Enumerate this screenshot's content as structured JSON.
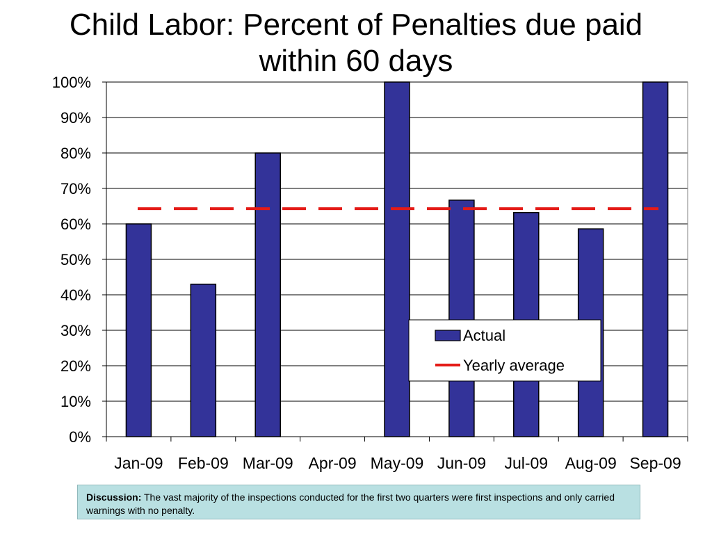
{
  "title_line1": "Child Labor: Percent of Penalties due paid",
  "title_line2": "within 60 days",
  "discussion": {
    "label": "Discussion:",
    "text": "The vast majority of the inspections conducted for the first two quarters were first inspections and only carried warnings with no penalty."
  },
  "colors": {
    "bar": "#333399",
    "bar_border": "#000000",
    "average_line": "#e41b17",
    "grid": "#000000",
    "discussion_bg": "#b9e0e2"
  },
  "chart_data": {
    "type": "bar",
    "title": "Child Labor: Percent of Penalties due paid within 60 days",
    "categories": [
      "Jan-09",
      "Feb-09",
      "Mar-09",
      "Apr-09",
      "May-09",
      "Jun-09",
      "Jul-09",
      "Aug-09",
      "Sep-09"
    ],
    "series": [
      {
        "name": "Actual",
        "values": [
          60,
          43,
          80,
          null,
          100,
          66.7,
          63.2,
          58.6,
          100
        ]
      }
    ],
    "yearly_average": {
      "name": "Yearly average",
      "value": 64.3,
      "style": "dashed"
    },
    "ylim": [
      0,
      100
    ],
    "yticks": [
      0,
      10,
      20,
      30,
      40,
      50,
      60,
      70,
      80,
      90,
      100
    ],
    "ytick_labels": [
      "0%",
      "10%",
      "20%",
      "30%",
      "40%",
      "50%",
      "60%",
      "70%",
      "80%",
      "90%",
      "100%"
    ],
    "xlabel": "",
    "ylabel": "",
    "grid": true,
    "legend": {
      "placement": "lower-right",
      "entries": [
        "Actual",
        "Yearly average"
      ]
    }
  }
}
